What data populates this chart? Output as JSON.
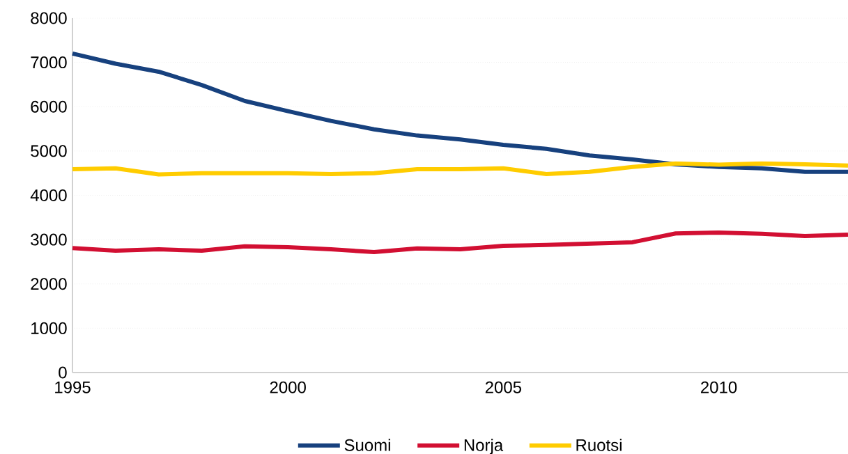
{
  "chart_data": {
    "type": "line",
    "x": [
      1995,
      1996,
      1997,
      1998,
      1999,
      2000,
      2001,
      2002,
      2003,
      2004,
      2005,
      2006,
      2007,
      2008,
      2009,
      2010,
      2011,
      2012,
      2013
    ],
    "series": [
      {
        "name": "Suomi",
        "color": "#17417e",
        "values": [
          7200,
          6970,
          6790,
          6490,
          6130,
          5900,
          5680,
          5490,
          5350,
          5260,
          5140,
          5050,
          4900,
          4810,
          4700,
          4640,
          4610,
          4530,
          4530
        ]
      },
      {
        "name": "Norja",
        "color": "#d20f32",
        "values": [
          2810,
          2750,
          2780,
          2750,
          2850,
          2830,
          2780,
          2720,
          2800,
          2780,
          2860,
          2880,
          2910,
          2940,
          3140,
          3160,
          3130,
          3080,
          3110
        ]
      },
      {
        "name": "Ruotsi",
        "color": "#ffcc00",
        "values": [
          4590,
          4610,
          4470,
          4500,
          4500,
          4500,
          4480,
          4500,
          4590,
          4590,
          4610,
          4480,
          4530,
          4640,
          4720,
          4690,
          4720,
          4700,
          4670
        ]
      }
    ],
    "xlim": [
      1995,
      2013
    ],
    "xticks": [
      1995,
      2000,
      2005,
      2010
    ],
    "ylim": [
      0,
      8000
    ],
    "yticks": [
      0,
      1000,
      2000,
      3000,
      4000,
      5000,
      6000,
      7000,
      8000
    ],
    "grid": "y",
    "legend": "bottom"
  }
}
